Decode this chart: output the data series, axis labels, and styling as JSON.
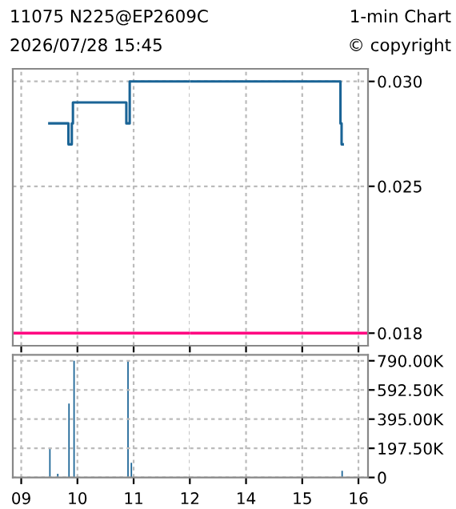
{
  "chart_data": [
    {
      "type": "step",
      "title": "11075 N225@EP2609C",
      "subtitle": "2026/07/28 15:45",
      "annotations": [
        "1-min Chart",
        "© copyright"
      ],
      "x": [
        9.5,
        9.84,
        9.9,
        9.92,
        10.87,
        10.93,
        12
      ],
      "series": [
        {
          "color": "#1a6496",
          "values": [
            0.028,
            0.027,
            0.028,
            0.029,
            0.028,
            0.03,
            0.03
          ]
        }
      ],
      "xlim": [
        8.85,
        12
      ],
      "ylim": [
        0.0174,
        0.0306
      ],
      "yticks": [
        0.018,
        0.025,
        0.03
      ],
      "xticks": [
        9,
        10,
        11,
        12
      ],
      "tick_labels": false,
      "grid": true,
      "ref_lines": [
        {
          "axis": "y",
          "value": 0.018,
          "color": "#ff0080"
        }
      ]
    },
    {
      "type": "step",
      "x": [
        13,
        15.68,
        15.7,
        15.72
      ],
      "series": [
        {
          "color": "#1a6496",
          "values": [
            0.03,
            0.028,
            0.027,
            0.027
          ]
        }
      ],
      "xlim": [
        13,
        16.17
      ],
      "ylim": [
        0.0174,
        0.0306
      ],
      "yticks": [
        0.018,
        0.025,
        {
          "value": 0.03,
          "label": "0.030"
        }
      ],
      "xticks": [
        14,
        15,
        16
      ],
      "tick_labels": "y",
      "grid": true,
      "ref_lines": [
        {
          "axis": "y",
          "value": 0.018,
          "color": "#ff0080"
        }
      ]
    },
    {
      "type": "bar",
      "x": [
        9.51,
        9.65,
        9.85,
        9.94,
        10.9,
        10.96
      ],
      "series": [
        {
          "color": "#1a6496",
          "values": [
            200000,
            25000,
            500000,
            790000,
            790000,
            100000
          ]
        }
      ],
      "xlim": [
        8.85,
        12
      ],
      "ylim": [
        0,
        830000
      ],
      "yticks": [
        0,
        197500,
        395000,
        592500,
        790000
      ],
      "xticks": [
        {
          "value": 9,
          "label": "09"
        },
        10,
        11,
        12
      ],
      "tick_labels": "x",
      "grid": true
    },
    {
      "type": "bar",
      "x": [
        15.71
      ],
      "series": [
        {
          "color": "#1a6496",
          "values": [
            45000
          ]
        }
      ],
      "xlim": [
        13,
        16.17
      ],
      "ylim": [
        0,
        830000
      ],
      "yticks": [
        0,
        {
          "value": 197500,
          "label": "197.50K"
        },
        {
          "value": 395000,
          "label": "395.00K"
        },
        {
          "value": 592500,
          "label": "592.50K"
        },
        {
          "value": 790000,
          "label": "790.00K"
        }
      ],
      "xticks": [
        14,
        15,
        16
      ],
      "grid": true
    }
  ]
}
